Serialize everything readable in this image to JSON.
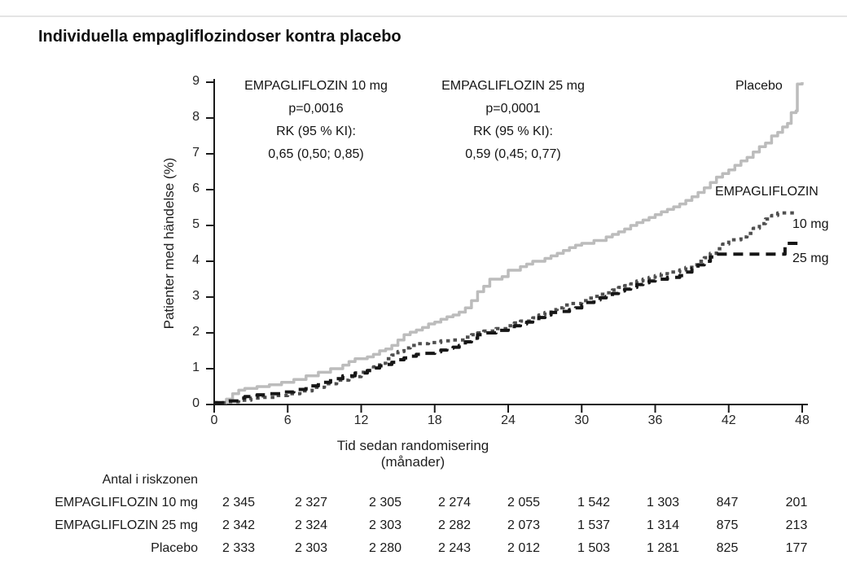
{
  "title": "Individuella empagliflozindoser kontra placebo",
  "annotations": [
    {
      "title": "EMPAGLIFLOZIN 10 mg",
      "p_value": "p=0,0016",
      "rk_label": "RK (95 % KI):",
      "rk_value": "0,65 (0,50; 0,85)"
    },
    {
      "title": "EMPAGLIFLOZIN 25 mg",
      "p_value": "p=0,0001",
      "rk_label": "RK (95 % KI):",
      "rk_value": "0,59 (0,45; 0,77)"
    }
  ],
  "legend": {
    "placebo": "Placebo",
    "empagliflozin": "EMPAGLIFLOZIN",
    "dose10": "10 mg",
    "dose25": "25 mg"
  },
  "chart_data": {
    "type": "line",
    "subtype": "kaplan-meier-step",
    "title": "Individuella empagliflozindoser kontra placebo",
    "xlabel": "Tid sedan randomisering (månader)",
    "ylabel": "Patienter med händelse (%)",
    "xlim": [
      0,
      48
    ],
    "ylim": [
      0,
      9
    ],
    "x_ticks": [
      0,
      6,
      12,
      18,
      24,
      30,
      36,
      42,
      48
    ],
    "y_ticks": [
      0,
      1,
      2,
      3,
      4,
      5,
      6,
      7,
      8,
      9
    ],
    "grid": false,
    "step": "after",
    "series": [
      {
        "name": "Placebo",
        "color": "#bcbcbc",
        "dash": "solid",
        "points": [
          [
            0,
            0.05
          ],
          [
            1,
            0.15
          ],
          [
            1.5,
            0.3
          ],
          [
            2,
            0.4
          ],
          [
            2.5,
            0.45
          ],
          [
            3.5,
            0.5
          ],
          [
            4.5,
            0.55
          ],
          [
            5.5,
            0.62
          ],
          [
            6.5,
            0.7
          ],
          [
            7.5,
            0.8
          ],
          [
            8.5,
            0.9
          ],
          [
            9.5,
            1.0
          ],
          [
            10.5,
            1.1
          ],
          [
            11,
            1.2
          ],
          [
            11.5,
            1.28
          ],
          [
            12.5,
            1.33
          ],
          [
            13,
            1.4
          ],
          [
            13.5,
            1.5
          ],
          [
            14,
            1.55
          ],
          [
            14.5,
            1.65
          ],
          [
            15,
            1.8
          ],
          [
            15.5,
            1.95
          ],
          [
            16,
            2.02
          ],
          [
            16.5,
            2.08
          ],
          [
            17,
            2.15
          ],
          [
            17.5,
            2.25
          ],
          [
            18,
            2.3
          ],
          [
            18.5,
            2.38
          ],
          [
            19,
            2.45
          ],
          [
            19.5,
            2.5
          ],
          [
            20,
            2.58
          ],
          [
            20.5,
            2.7
          ],
          [
            21,
            2.9
          ],
          [
            21.5,
            3.15
          ],
          [
            22,
            3.3
          ],
          [
            22.5,
            3.5
          ],
          [
            23.5,
            3.57
          ],
          [
            24,
            3.75
          ],
          [
            25,
            3.85
          ],
          [
            25.5,
            3.92
          ],
          [
            26,
            4.0
          ],
          [
            27,
            4.08
          ],
          [
            27.5,
            4.15
          ],
          [
            28,
            4.22
          ],
          [
            28.5,
            4.3
          ],
          [
            29,
            4.38
          ],
          [
            29.5,
            4.45
          ],
          [
            30,
            4.5
          ],
          [
            31,
            4.58
          ],
          [
            32,
            4.68
          ],
          [
            32.5,
            4.75
          ],
          [
            33,
            4.82
          ],
          [
            33.5,
            4.9
          ],
          [
            34,
            5.0
          ],
          [
            34.5,
            5.08
          ],
          [
            35,
            5.15
          ],
          [
            35.5,
            5.22
          ],
          [
            36,
            5.3
          ],
          [
            36.5,
            5.38
          ],
          [
            37,
            5.45
          ],
          [
            37.5,
            5.52
          ],
          [
            38,
            5.6
          ],
          [
            38.5,
            5.7
          ],
          [
            39,
            5.8
          ],
          [
            39.5,
            5.92
          ],
          [
            40,
            6.05
          ],
          [
            40.5,
            6.2
          ],
          [
            41,
            6.35
          ],
          [
            41.5,
            6.45
          ],
          [
            42,
            6.55
          ],
          [
            42.5,
            6.68
          ],
          [
            43,
            6.8
          ],
          [
            43.5,
            6.9
          ],
          [
            44,
            7.05
          ],
          [
            44.5,
            7.2
          ],
          [
            45,
            7.3
          ],
          [
            45.5,
            7.5
          ],
          [
            46,
            7.6
          ],
          [
            46.4,
            7.75
          ],
          [
            46.8,
            7.85
          ],
          [
            47.1,
            8.15
          ],
          [
            47.5,
            8.2
          ],
          [
            47.6,
            8.95
          ],
          [
            48,
            9.0
          ]
        ]
      },
      {
        "name": "EMPAGLIFLOZIN 10 mg",
        "color": "#4f4f4f",
        "dash": "dotted",
        "points": [
          [
            0,
            0.05
          ],
          [
            1,
            0.08
          ],
          [
            2,
            0.12
          ],
          [
            3,
            0.18
          ],
          [
            4,
            0.2
          ],
          [
            5,
            0.25
          ],
          [
            6,
            0.3
          ],
          [
            7,
            0.38
          ],
          [
            8,
            0.48
          ],
          [
            9,
            0.58
          ],
          [
            10,
            0.68
          ],
          [
            11,
            0.78
          ],
          [
            12,
            0.9
          ],
          [
            12.5,
            0.95
          ],
          [
            13,
            1.05
          ],
          [
            13.5,
            1.15
          ],
          [
            14,
            1.28
          ],
          [
            14.5,
            1.38
          ],
          [
            15,
            1.48
          ],
          [
            15.5,
            1.58
          ],
          [
            16,
            1.65
          ],
          [
            16.5,
            1.7
          ],
          [
            17.5,
            1.73
          ],
          [
            18.5,
            1.78
          ],
          [
            19.5,
            1.8
          ],
          [
            20.5,
            1.88
          ],
          [
            21,
            1.95
          ],
          [
            21.5,
            2.0
          ],
          [
            22,
            2.05
          ],
          [
            23,
            2.12
          ],
          [
            24,
            2.2
          ],
          [
            24.5,
            2.28
          ],
          [
            25,
            2.33
          ],
          [
            26,
            2.42
          ],
          [
            26.5,
            2.5
          ],
          [
            27,
            2.57
          ],
          [
            27.5,
            2.65
          ],
          [
            28,
            2.7
          ],
          [
            28.5,
            2.78
          ],
          [
            29,
            2.82
          ],
          [
            30,
            2.9
          ],
          [
            30.5,
            2.97
          ],
          [
            31,
            3.02
          ],
          [
            31.5,
            3.08
          ],
          [
            32,
            3.12
          ],
          [
            32.5,
            3.2
          ],
          [
            33,
            3.27
          ],
          [
            33.5,
            3.32
          ],
          [
            34,
            3.37
          ],
          [
            34.5,
            3.45
          ],
          [
            35,
            3.5
          ],
          [
            35.5,
            3.55
          ],
          [
            36,
            3.6
          ],
          [
            36.5,
            3.65
          ],
          [
            37,
            3.7
          ],
          [
            38,
            3.76
          ],
          [
            38.5,
            3.83
          ],
          [
            39,
            3.9
          ],
          [
            39.5,
            4.0
          ],
          [
            40,
            4.1
          ],
          [
            40.5,
            4.22
          ],
          [
            41,
            4.35
          ],
          [
            41.5,
            4.48
          ],
          [
            42,
            4.6
          ],
          [
            43,
            4.68
          ],
          [
            43.5,
            4.78
          ],
          [
            44,
            4.92
          ],
          [
            44.5,
            5.05
          ],
          [
            45,
            5.18
          ],
          [
            45.5,
            5.28
          ],
          [
            46,
            5.35
          ],
          [
            47.5,
            5.35
          ]
        ]
      },
      {
        "name": "EMPAGLIFLOZIN 25 mg",
        "color": "#161616",
        "dash": "dashed",
        "points": [
          [
            0,
            0.05
          ],
          [
            1,
            0.1
          ],
          [
            2,
            0.18
          ],
          [
            2.5,
            0.22
          ],
          [
            3.5,
            0.27
          ],
          [
            4.5,
            0.3
          ],
          [
            5.5,
            0.35
          ],
          [
            6.5,
            0.42
          ],
          [
            7.5,
            0.52
          ],
          [
            8.5,
            0.62
          ],
          [
            9.5,
            0.72
          ],
          [
            10.5,
            0.8
          ],
          [
            11.5,
            0.88
          ],
          [
            12.5,
            0.95
          ],
          [
            13,
            1.02
          ],
          [
            13.5,
            1.08
          ],
          [
            14,
            1.12
          ],
          [
            14.5,
            1.18
          ],
          [
            15,
            1.25
          ],
          [
            15.5,
            1.3
          ],
          [
            16,
            1.35
          ],
          [
            16.5,
            1.4
          ],
          [
            17,
            1.43
          ],
          [
            18,
            1.47
          ],
          [
            18.5,
            1.52
          ],
          [
            19,
            1.57
          ],
          [
            19.5,
            1.6
          ],
          [
            20,
            1.65
          ],
          [
            20.5,
            1.75
          ],
          [
            21,
            1.85
          ],
          [
            21.5,
            1.95
          ],
          [
            22,
            2.0
          ],
          [
            23,
            2.07
          ],
          [
            24,
            2.12
          ],
          [
            24.5,
            2.2
          ],
          [
            25,
            2.25
          ],
          [
            25.5,
            2.3
          ],
          [
            26,
            2.35
          ],
          [
            26.5,
            2.43
          ],
          [
            27,
            2.5
          ],
          [
            27.5,
            2.57
          ],
          [
            28,
            2.6
          ],
          [
            29,
            2.65
          ],
          [
            29.5,
            2.7
          ],
          [
            30,
            2.77
          ],
          [
            30.5,
            2.85
          ],
          [
            31,
            2.92
          ],
          [
            31.5,
            2.98
          ],
          [
            32,
            3.02
          ],
          [
            32.5,
            3.1
          ],
          [
            33,
            3.17
          ],
          [
            33.5,
            3.22
          ],
          [
            34,
            3.27
          ],
          [
            34.5,
            3.35
          ],
          [
            35,
            3.4
          ],
          [
            35.5,
            3.45
          ],
          [
            36,
            3.5
          ],
          [
            37,
            3.55
          ],
          [
            38,
            3.6
          ],
          [
            38.5,
            3.7
          ],
          [
            39,
            3.8
          ],
          [
            39.5,
            3.9
          ],
          [
            40,
            4.0
          ],
          [
            40.5,
            4.12
          ],
          [
            41,
            4.2
          ],
          [
            46.4,
            4.2
          ],
          [
            46.6,
            4.5
          ],
          [
            47.7,
            4.55
          ]
        ]
      }
    ]
  },
  "risk_table": {
    "header": "Antal i riskzonen",
    "rows": [
      {
        "label": "EMPAGLIFLOZIN 10 mg",
        "values": [
          "2 345",
          "2 327",
          "2 305",
          "2 274",
          "2 055",
          "1 542",
          "1 303",
          "847",
          "201"
        ]
      },
      {
        "label": "EMPAGLIFLOZIN 25 mg",
        "values": [
          "2 342",
          "2 324",
          "2 303",
          "2 282",
          "2 073",
          "1 537",
          "1 314",
          "875",
          "213"
        ]
      },
      {
        "label": "Placebo",
        "values": [
          "2 333",
          "2 303",
          "2 280",
          "2 243",
          "2 012",
          "1 503",
          "1 281",
          "825",
          "177"
        ]
      }
    ]
  }
}
